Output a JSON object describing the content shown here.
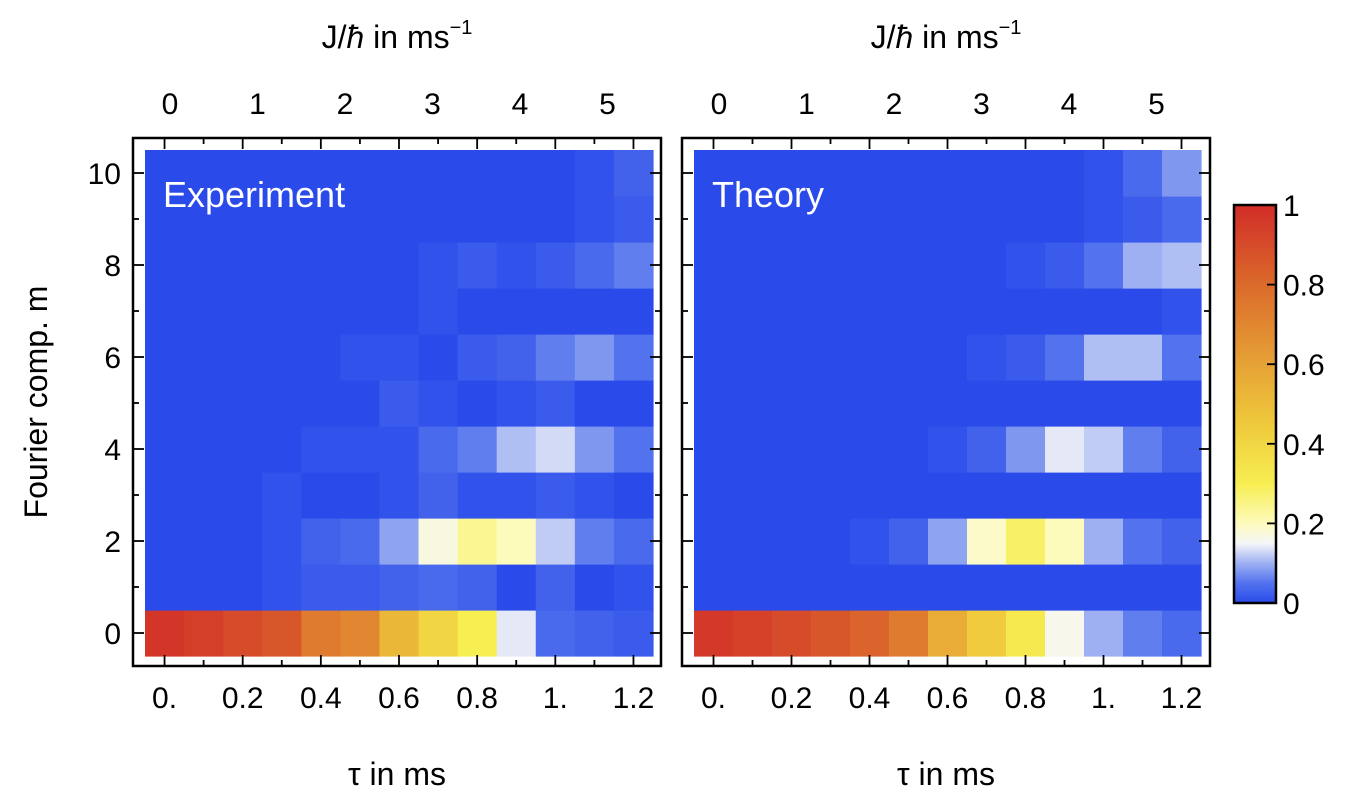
{
  "chart_data": {
    "type": "heatmap",
    "ylabel": "Fourier comp. m",
    "xlabel_bottom": "τ in ms",
    "xlabel_top_prefix": "J/",
    "xlabel_top_hbar": "ħ",
    "xlabel_top_suffix": " in ms",
    "xlabel_top_exp": "−1",
    "x_bottom": {
      "range": [
        -0.05,
        1.25
      ],
      "ticks": [
        0.0,
        0.2,
        0.4,
        0.6,
        0.8,
        1.0,
        1.2
      ],
      "tick_labels": [
        "0.",
        "0.2",
        "0.4",
        "0.6",
        "0.8",
        "1.",
        "1.2"
      ]
    },
    "x_top": {
      "ticks": [
        0,
        1,
        2,
        3,
        4,
        5
      ],
      "tick_labels": [
        "0",
        "1",
        "2",
        "3",
        "4",
        "5"
      ]
    },
    "y": {
      "range": [
        -0.5,
        10.5
      ],
      "ticks": [
        0,
        2,
        4,
        6,
        8,
        10
      ],
      "tick_labels": [
        "0",
        "2",
        "4",
        "6",
        "8",
        "10"
      ]
    },
    "tau_values": [
      0.0,
      0.1,
      0.2,
      0.3,
      0.4,
      0.5,
      0.6,
      0.7,
      0.8,
      0.9,
      1.0,
      1.1,
      1.2
    ],
    "m_values": [
      0,
      1,
      2,
      3,
      4,
      5,
      6,
      7,
      8,
      9,
      10
    ],
    "panels": [
      {
        "label": "Experiment",
        "z": [
          [
            0.97,
            0.94,
            0.9,
            0.86,
            0.74,
            0.7,
            0.52,
            0.4,
            0.3,
            0.14,
            0.04,
            0.03,
            0.02
          ],
          [
            0.0,
            0.0,
            0.0,
            0.01,
            0.02,
            0.02,
            0.03,
            0.04,
            0.03,
            0.0,
            0.03,
            0.0,
            0.01
          ],
          [
            0.0,
            0.0,
            0.0,
            0.01,
            0.03,
            0.04,
            0.09,
            0.17,
            0.24,
            0.2,
            0.12,
            0.06,
            0.04
          ],
          [
            0.0,
            0.0,
            0.0,
            0.01,
            0.0,
            0.0,
            0.01,
            0.03,
            0.01,
            0.01,
            0.02,
            0.01,
            0.0
          ],
          [
            0.0,
            0.0,
            0.0,
            0.0,
            0.01,
            0.01,
            0.01,
            0.04,
            0.06,
            0.11,
            0.13,
            0.08,
            0.05
          ],
          [
            0.0,
            0.0,
            0.0,
            0.0,
            0.0,
            0.0,
            0.02,
            0.01,
            0.0,
            0.01,
            0.02,
            0.0,
            0.0
          ],
          [
            0.0,
            0.0,
            0.0,
            0.0,
            0.0,
            0.01,
            0.01,
            0.0,
            0.02,
            0.03,
            0.06,
            0.08,
            0.05
          ],
          [
            0.0,
            0.0,
            0.0,
            0.0,
            0.0,
            0.0,
            0.0,
            0.01,
            0.0,
            0.0,
            0.0,
            0.0,
            0.0
          ],
          [
            0.0,
            0.0,
            0.0,
            0.0,
            0.0,
            0.0,
            0.0,
            0.01,
            0.02,
            0.01,
            0.02,
            0.04,
            0.06
          ],
          [
            0.0,
            0.0,
            0.0,
            0.0,
            0.0,
            0.0,
            0.0,
            0.0,
            0.0,
            0.0,
            0.0,
            0.01,
            0.02
          ],
          [
            0.0,
            0.0,
            0.0,
            0.0,
            0.0,
            0.0,
            0.0,
            0.0,
            0.0,
            0.0,
            0.0,
            0.01,
            0.03
          ]
        ]
      },
      {
        "label": "Theory",
        "z": [
          [
            0.96,
            0.93,
            0.9,
            0.86,
            0.82,
            0.74,
            0.56,
            0.44,
            0.32,
            0.16,
            0.1,
            0.06,
            0.04
          ],
          [
            0.0,
            0.0,
            0.0,
            0.0,
            0.0,
            0.0,
            0.0,
            0.0,
            0.0,
            0.0,
            0.0,
            0.0,
            0.0
          ],
          [
            0.0,
            0.0,
            0.0,
            0.0,
            0.01,
            0.03,
            0.09,
            0.19,
            0.28,
            0.2,
            0.1,
            0.05,
            0.03
          ],
          [
            0.0,
            0.0,
            0.0,
            0.0,
            0.0,
            0.0,
            0.0,
            0.0,
            0.0,
            0.0,
            0.0,
            0.0,
            0.0
          ],
          [
            0.0,
            0.0,
            0.0,
            0.0,
            0.0,
            0.0,
            0.01,
            0.03,
            0.08,
            0.14,
            0.12,
            0.06,
            0.03
          ],
          [
            0.0,
            0.0,
            0.0,
            0.0,
            0.0,
            0.0,
            0.0,
            0.0,
            0.0,
            0.0,
            0.0,
            0.0,
            0.0
          ],
          [
            0.0,
            0.0,
            0.0,
            0.0,
            0.0,
            0.0,
            0.0,
            0.01,
            0.02,
            0.05,
            0.11,
            0.11,
            0.05
          ],
          [
            0.0,
            0.0,
            0.0,
            0.0,
            0.0,
            0.0,
            0.0,
            0.0,
            0.0,
            0.0,
            0.0,
            0.0,
            0.01
          ],
          [
            0.0,
            0.0,
            0.0,
            0.0,
            0.0,
            0.0,
            0.0,
            0.0,
            0.01,
            0.02,
            0.05,
            0.1,
            0.11
          ],
          [
            0.0,
            0.0,
            0.0,
            0.0,
            0.0,
            0.0,
            0.0,
            0.0,
            0.0,
            0.0,
            0.01,
            0.02,
            0.04
          ],
          [
            0.0,
            0.0,
            0.0,
            0.0,
            0.0,
            0.0,
            0.0,
            0.0,
            0.0,
            0.0,
            0.01,
            0.04,
            0.08
          ]
        ]
      }
    ],
    "colorbar": {
      "range": [
        0,
        1
      ],
      "ticks": [
        0,
        0.2,
        0.4,
        0.6,
        0.8,
        1
      ],
      "tick_labels": [
        "0",
        "0.2",
        "0.4",
        "0.6",
        "0.8",
        "1"
      ],
      "colormap_stops": [
        {
          "v": 0.0,
          "color": "#2a4bea"
        },
        {
          "v": 0.05,
          "color": "#5272ee"
        },
        {
          "v": 0.1,
          "color": "#9eb0f2"
        },
        {
          "v": 0.15,
          "color": "#f5f6f8"
        },
        {
          "v": 0.2,
          "color": "#fdfbbc"
        },
        {
          "v": 0.3,
          "color": "#f7ee52"
        },
        {
          "v": 0.45,
          "color": "#eec93b"
        },
        {
          "v": 0.6,
          "color": "#e6a236"
        },
        {
          "v": 0.8,
          "color": "#db6a2b"
        },
        {
          "v": 1.0,
          "color": "#d12c28"
        }
      ]
    }
  }
}
